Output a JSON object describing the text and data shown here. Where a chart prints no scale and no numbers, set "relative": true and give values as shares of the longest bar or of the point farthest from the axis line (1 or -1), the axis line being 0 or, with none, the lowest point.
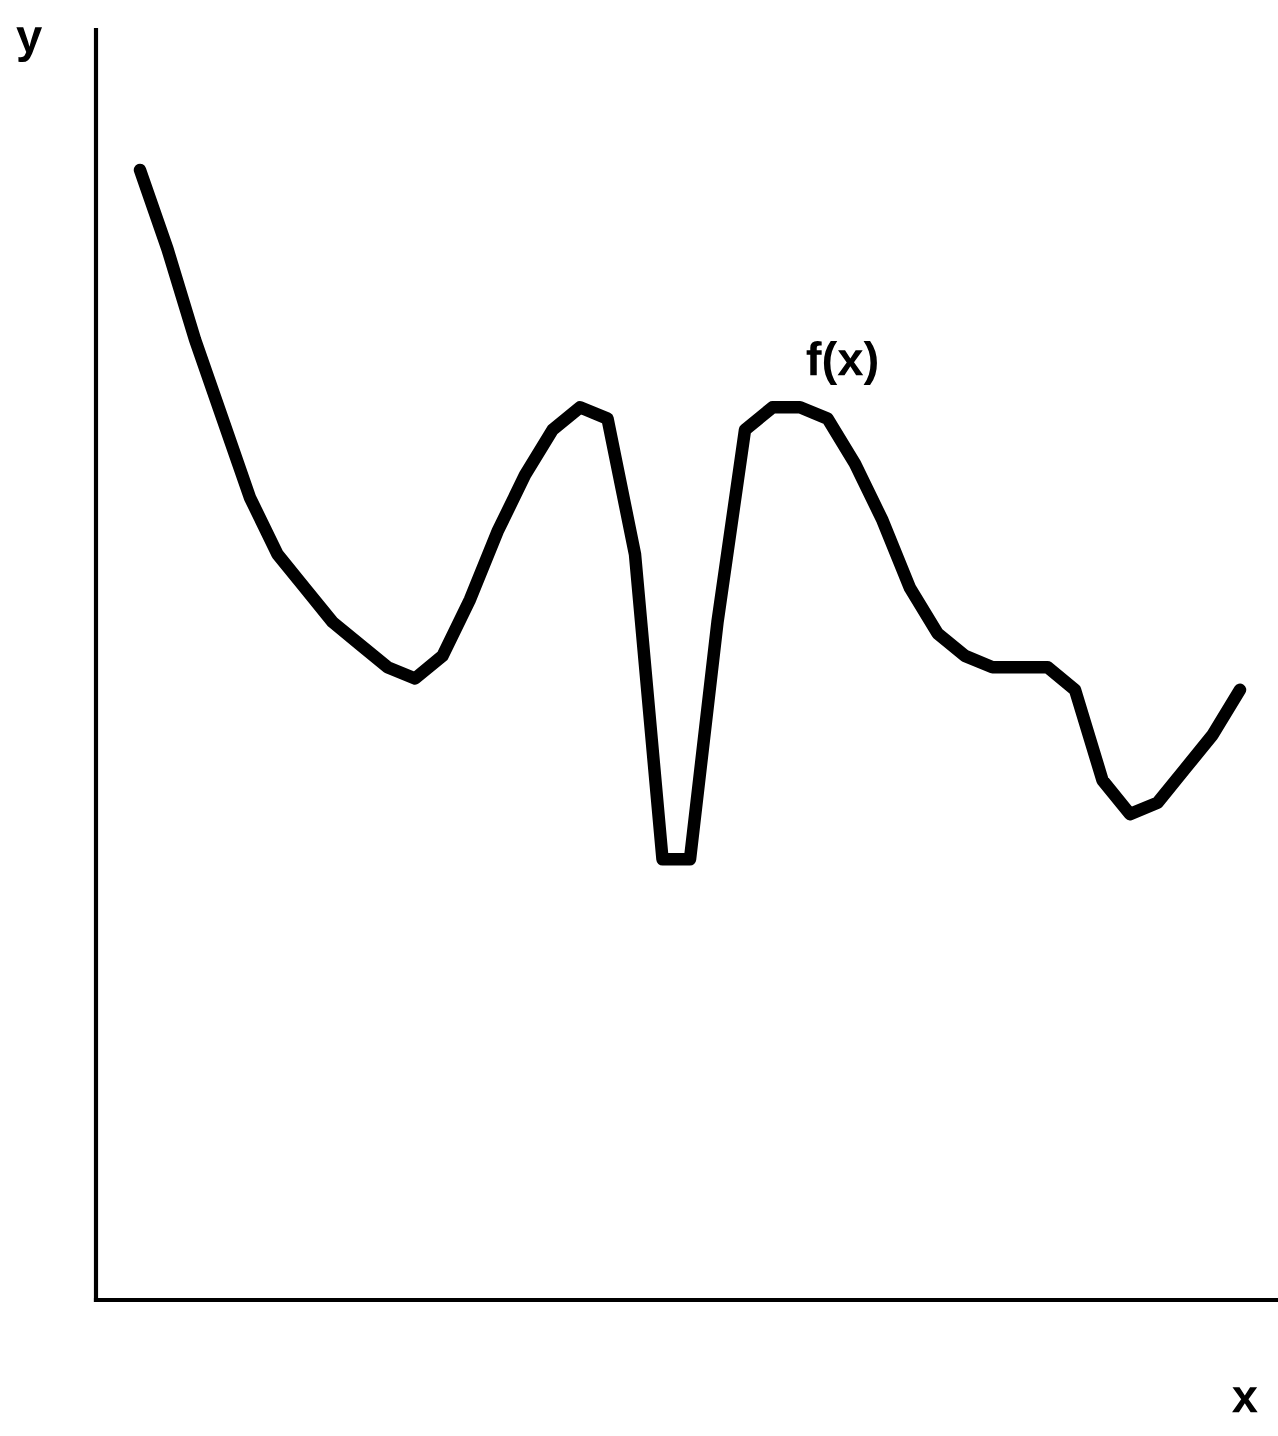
{
  "chart_data": {
    "type": "line",
    "relative": true,
    "xlabel": "x",
    "ylabel": "y",
    "legend": false,
    "marker": "none",
    "line_style": "solid",
    "categories": [
      null,
      null,
      null,
      null,
      null,
      null,
      null,
      null,
      null,
      null,
      null,
      null,
      null,
      null,
      null,
      null,
      null,
      null,
      null,
      null,
      null,
      null,
      null,
      null,
      null,
      null,
      null,
      null,
      null,
      null,
      null,
      null,
      null,
      null,
      null,
      null,
      null,
      null,
      null,
      null,
      null
    ],
    "series": [
      {
        "name": "f(x)",
        "color": "#000000",
        "values": [
          1.0,
          0.93,
          0.85,
          0.78,
          0.71,
          0.66,
          0.63,
          0.6,
          0.58,
          0.56,
          0.55,
          0.57,
          0.62,
          0.68,
          0.73,
          0.77,
          0.79,
          0.78,
          0.66,
          0.39,
          0.39,
          0.6,
          0.77,
          0.79,
          0.79,
          0.78,
          0.74,
          0.69,
          0.63,
          0.59,
          0.57,
          0.56,
          0.56,
          0.56,
          0.54,
          0.46,
          0.43,
          0.44,
          0.47,
          0.5,
          0.54
        ]
      }
    ]
  }
}
